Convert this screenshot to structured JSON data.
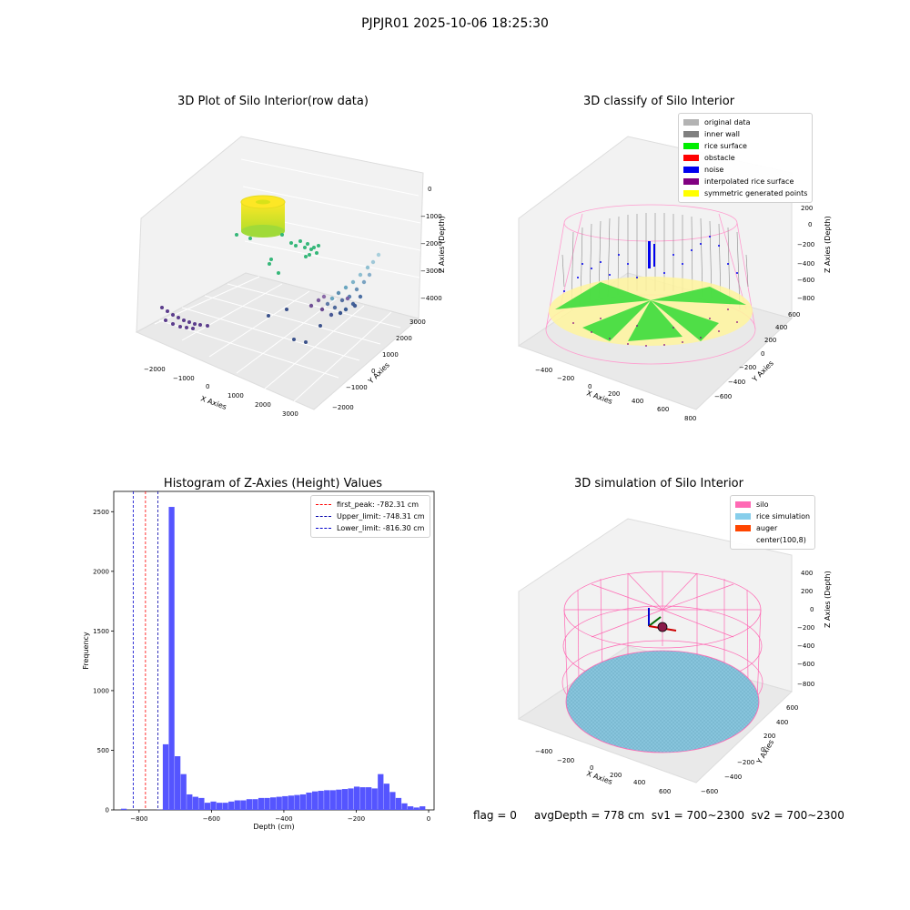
{
  "suptitle": "PJPJR01 2025-10-06 18:25:30",
  "status_line": "flag = 0     avgDepth = 778 cm  sv1 = 700~2300  sv2 = 700~2300",
  "colors": {
    "hist_bar": "#5555ff",
    "first_peak": "#ff0000",
    "upper_limit": "#0000aa",
    "lower_limit": "#0000cc",
    "grid": "#e6e6e6",
    "pane": "#f2f2f2"
  },
  "chart_data": [
    {
      "type": "scatter",
      "projection": "3d",
      "title": "3D Plot of Silo Interior(row data)",
      "xlabel": "X Axies",
      "ylabel": "Y Axies",
      "zlabel": "Z Axies (Depth)",
      "x_ticks": [
        "−2000",
        "−1000",
        "0",
        "1000",
        "2000",
        "3000"
      ],
      "y_ticks": [
        "−2000",
        "−1000",
        "0",
        "1000",
        "2000",
        "3000"
      ],
      "z_ticks": [
        "0",
        "−1000",
        "−2000",
        "−3000",
        "−4000"
      ],
      "xlim": [
        -2500,
        3500
      ],
      "ylim": [
        -2200,
        3200
      ],
      "zlim": [
        -4500,
        0
      ],
      "colormap": "viridis",
      "clusters": [
        {
          "description": "ring top cluster",
          "x": [
            -200,
            300
          ],
          "y": [
            2200,
            2800
          ],
          "z": [
            -1000,
            -1300
          ]
        },
        {
          "description": "green cluster",
          "x": [
            400,
            1000
          ],
          "y": [
            1500,
            2200
          ],
          "z": [
            -2000,
            -2500
          ]
        },
        {
          "description": "right wall cluster",
          "x": [
            2300,
            3100
          ],
          "y": [
            -500,
            800
          ],
          "z": [
            -2800,
            -4100
          ]
        },
        {
          "description": "left purple cluster",
          "x": [
            -2000,
            -1500
          ],
          "y": [
            -1500,
            -1000
          ],
          "z": [
            -4000,
            -4400
          ]
        }
      ]
    },
    {
      "type": "scatter",
      "projection": "3d",
      "title": "3D classify of Silo Interior",
      "xlabel": "X Axies",
      "ylabel": "Y Axies",
      "zlabel": "Z Axies (Depth)",
      "x_ticks": [
        "−400",
        "−200",
        "0",
        "200",
        "400",
        "600",
        "800"
      ],
      "y_ticks": [
        "−600",
        "−400",
        "−200",
        "0",
        "200",
        "400",
        "600"
      ],
      "z_ticks": [
        "200",
        "0",
        "−200",
        "−400",
        "−600",
        "−800"
      ],
      "legend": [
        {
          "label": "original data",
          "color": "#b3b3b3"
        },
        {
          "label": "inner wall",
          "color": "#808080"
        },
        {
          "label": "rice surface",
          "color": "#00ee00"
        },
        {
          "label": "obstacle",
          "color": "#ff0000"
        },
        {
          "label": "noise",
          "color": "#0000ee"
        },
        {
          "label": "interpolated rice surface",
          "color": "#800080"
        },
        {
          "label": "symmetric generated points",
          "color": "#ffff00"
        }
      ]
    },
    {
      "type": "bar",
      "title": "Histogram of Z-Axies (Height) Values",
      "xlabel": "Depth (cm)",
      "ylabel": "Frequency",
      "xlim": [
        -870,
        15
      ],
      "ylim": [
        0,
        2670
      ],
      "x_ticks": [
        "−800",
        "−600",
        "−400",
        "−200",
        "0"
      ],
      "x_tick_values": [
        -800,
        -600,
        -400,
        -200,
        0
      ],
      "y_ticks": [
        "0",
        "500",
        "1000",
        "1500",
        "2000",
        "2500"
      ],
      "y_tick_values": [
        0,
        500,
        1000,
        1500,
        2000,
        2500
      ],
      "bin_start": -850,
      "bin_width": 16.5,
      "values": [
        10,
        0,
        0,
        0,
        0,
        0,
        2,
        550,
        2540,
        450,
        300,
        130,
        110,
        100,
        60,
        70,
        60,
        60,
        70,
        80,
        80,
        90,
        90,
        100,
        100,
        105,
        110,
        115,
        120,
        125,
        130,
        145,
        155,
        160,
        165,
        165,
        170,
        175,
        180,
        195,
        190,
        190,
        180,
        300,
        220,
        150,
        100,
        55,
        30,
        20,
        30
      ],
      "lines": [
        {
          "label": "first_peak: -782.31 cm",
          "x": -782.31,
          "color": "#ff0000"
        },
        {
          "label": "Upper_limit: -748.31 cm",
          "x": -748.31,
          "color": "#0000aa"
        },
        {
          "label": "Lower_limit: -816.30 cm",
          "x": -816.3,
          "color": "#0000cc"
        }
      ]
    },
    {
      "type": "scatter",
      "projection": "3d",
      "title": "3D simulation of Silo Interior",
      "xlabel": "X Axies",
      "ylabel": "Y Axies",
      "zlabel": "Z Axies (Depth)",
      "x_ticks": [
        "−400",
        "−200",
        "0",
        "200",
        "400",
        "600"
      ],
      "y_ticks": [
        "−600",
        "−400",
        "−200",
        "0",
        "200",
        "400",
        "600"
      ],
      "z_ticks": [
        "400",
        "200",
        "0",
        "−200",
        "−400",
        "−600",
        "−800"
      ],
      "legend": [
        {
          "label": "silo",
          "color": "#ff69b4"
        },
        {
          "label": "rice simulation",
          "color": "#87ceeb"
        },
        {
          "label": "auger",
          "color": "#ff4500"
        },
        {
          "label": "center(100,8)",
          "color": "#ffffff"
        }
      ]
    }
  ]
}
